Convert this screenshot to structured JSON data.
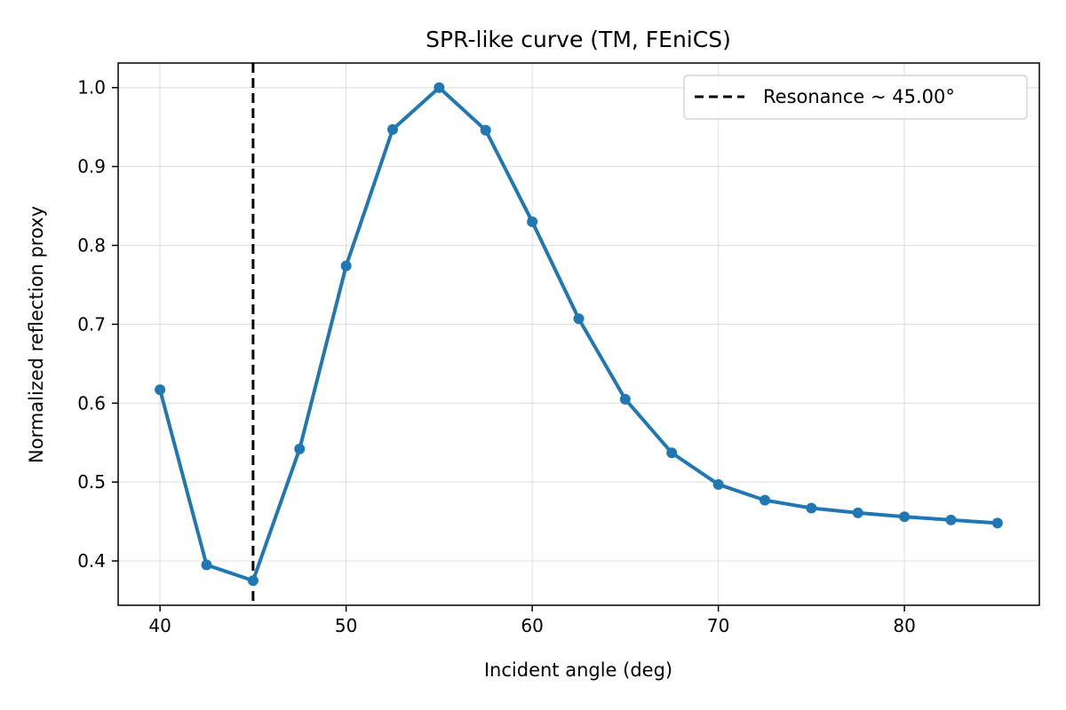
{
  "chart_data": {
    "type": "line",
    "title": "SPR-like curve (TM, FEniCS)",
    "xlabel": "Incident angle (deg)",
    "ylabel": "Normalized reflection proxy",
    "xlim": [
      37.75,
      87.25
    ],
    "ylim": [
      0.3438,
      1.0312
    ],
    "xticks": [
      40,
      50,
      60,
      70,
      80
    ],
    "yticks": [
      0.4,
      0.5,
      0.6,
      0.7,
      0.8,
      0.9,
      1.0
    ],
    "xtick_labels": [
      "40",
      "50",
      "60",
      "70",
      "80"
    ],
    "ytick_labels": [
      "0.4",
      "0.5",
      "0.6",
      "0.7",
      "0.8",
      "0.9",
      "1.0"
    ],
    "grid": true,
    "legend_position": "top-right",
    "series": [
      {
        "color": "#1f77b4",
        "marker": "circle",
        "x": [
          40,
          42.5,
          45,
          47.5,
          50,
          52.5,
          55,
          57.5,
          60,
          62.5,
          65,
          67.5,
          70,
          72.5,
          75,
          77.5,
          80,
          82.5,
          85
        ],
        "y": [
          0.617,
          0.395,
          0.375,
          0.542,
          0.774,
          0.947,
          1.0,
          0.946,
          0.83,
          0.707,
          0.605,
          0.537,
          0.497,
          0.477,
          0.467,
          0.461,
          0.456,
          0.452,
          0.448
        ]
      }
    ],
    "annotations": [
      {
        "type": "vline",
        "x": 45.0,
        "style": "dashed",
        "color": "#000000",
        "label": "Resonance ~ 45.00°"
      }
    ]
  }
}
